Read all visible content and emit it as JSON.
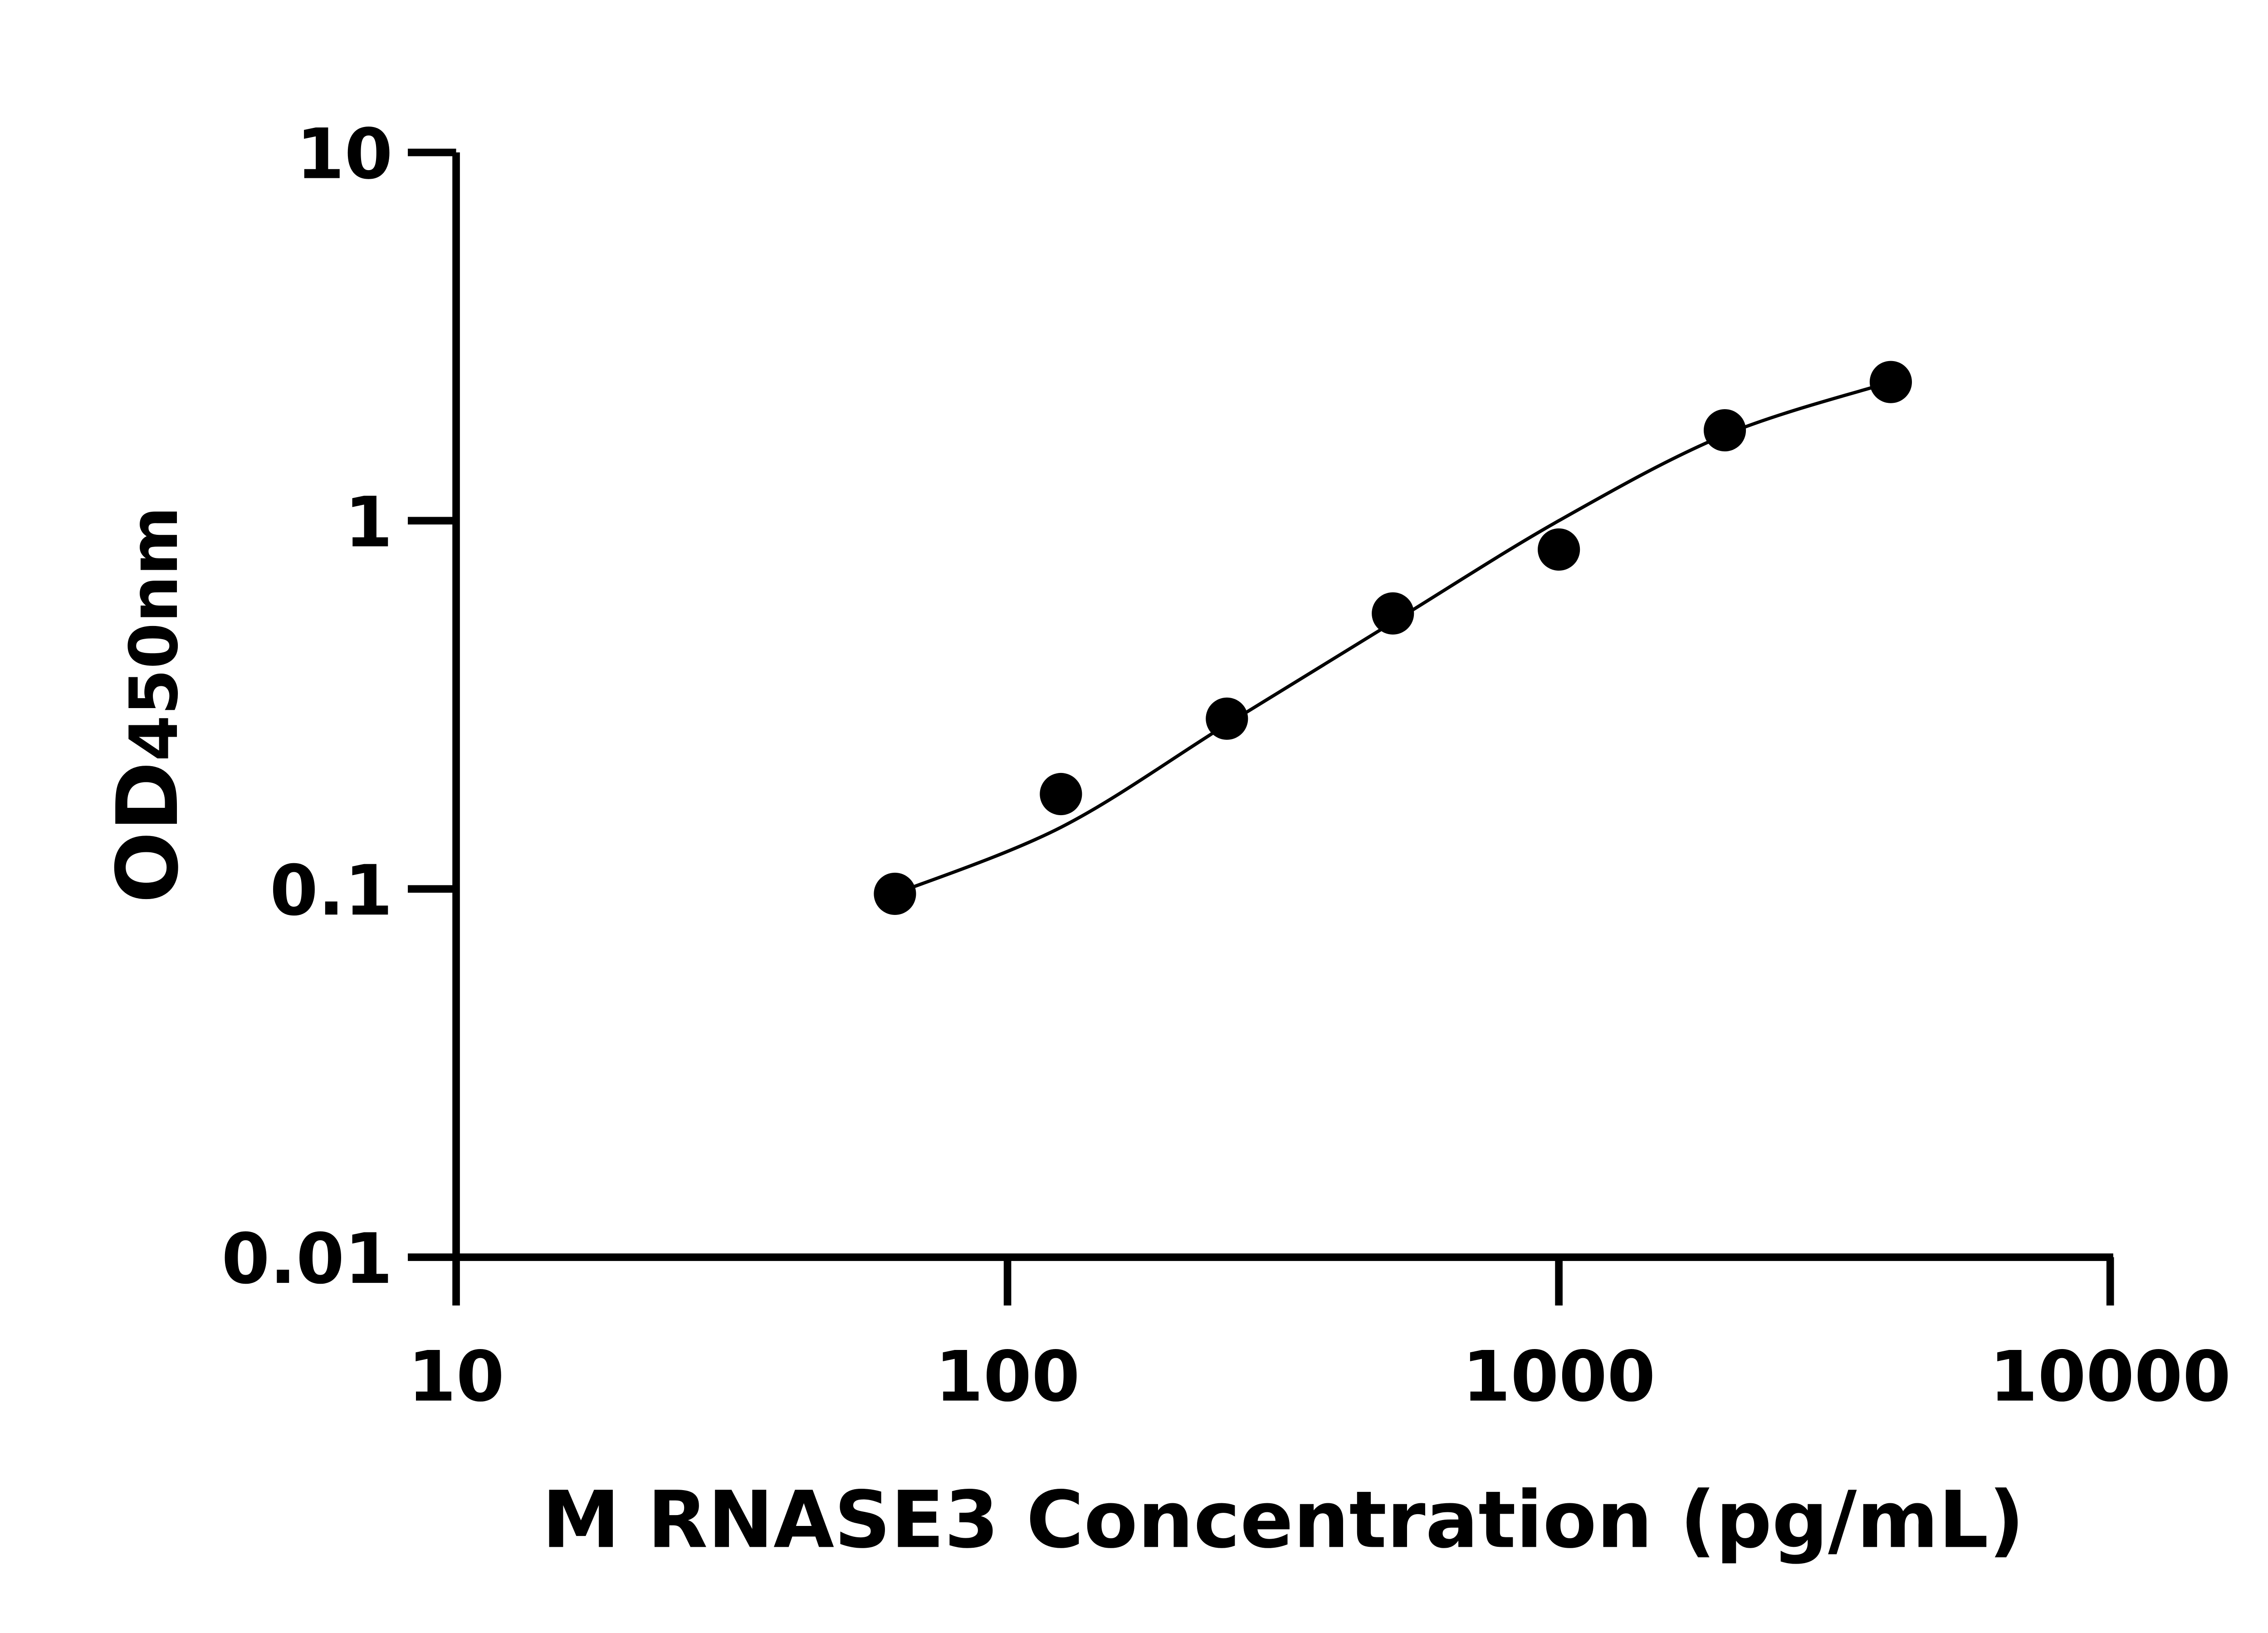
{
  "chart_data": {
    "type": "scatter",
    "title": "",
    "xlabel": "M RNASE3 Concentration (pg/mL)",
    "ylabel_main": "OD",
    "ylabel_sub": "450nm",
    "x_scale": "log",
    "y_scale": "log",
    "xlim": [
      10,
      10000
    ],
    "ylim": [
      0.01,
      10
    ],
    "x_ticks": [
      "10",
      "100",
      "1000",
      "10000"
    ],
    "y_ticks": [
      "0.01",
      "0.1",
      "1",
      "10"
    ],
    "grid": false,
    "legend": "none",
    "points": {
      "x": [
        62.5,
        125,
        250,
        500,
        1000,
        2000,
        4000
      ],
      "y": [
        0.097,
        0.181,
        0.29,
        0.56,
        0.835,
        1.76,
        2.38
      ]
    },
    "fit_curve": {
      "x": [
        62.5,
        125,
        250,
        500,
        1000,
        2000,
        4000
      ],
      "y": [
        0.097,
        0.147,
        0.28,
        0.53,
        1.0,
        1.71,
        2.38
      ]
    },
    "colors": {
      "points": "#000000",
      "curve": "#000000",
      "axes": "#000000"
    }
  }
}
